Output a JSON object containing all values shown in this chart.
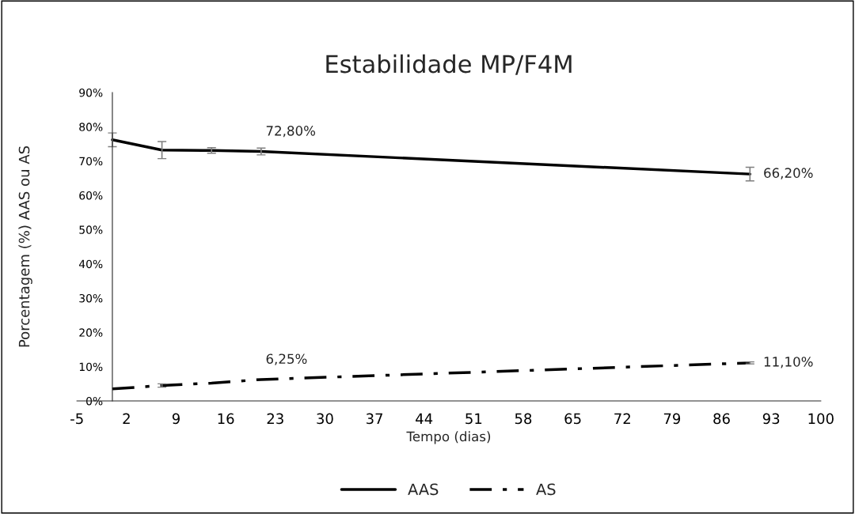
{
  "chart_data": {
    "type": "line",
    "title": "Estabilidade MP/F4M",
    "xlabel": "Tempo (dias)",
    "ylabel": "Porcentagem (%) AAS ou AS",
    "x": [
      0,
      7,
      14,
      21,
      90
    ],
    "series": [
      {
        "name": "AAS",
        "color": "#000000",
        "line_style": "solid",
        "values": [
          76.2,
          73.2,
          73.1,
          72.8,
          66.2
        ],
        "errors": [
          2,
          2.5,
          0.8,
          1,
          2
        ],
        "value_labels": [
          null,
          null,
          null,
          "72,80%",
          "66,20%"
        ]
      },
      {
        "name": "AS",
        "color": "#000000",
        "line_style": "dashdot",
        "values": [
          3.5,
          4.5,
          5.2,
          6.25,
          11.1
        ],
        "errors": [
          null,
          0.5,
          null,
          null,
          0.3
        ],
        "value_labels": [
          null,
          null,
          null,
          "6,25%",
          "11,10%"
        ]
      }
    ],
    "xlim": [
      -5,
      100
    ],
    "xticks": [
      -5,
      2,
      9,
      16,
      23,
      30,
      37,
      44,
      51,
      58,
      65,
      72,
      79,
      86,
      93,
      100
    ],
    "ylim": [
      0,
      90
    ],
    "yticks": [
      {
        "value": 0,
        "label": "0%"
      },
      {
        "value": 10,
        "label": "10%"
      },
      {
        "value": 20,
        "label": "20%"
      },
      {
        "value": 30,
        "label": "30%"
      },
      {
        "value": 40,
        "label": "40%"
      },
      {
        "value": 50,
        "label": "50%"
      },
      {
        "value": 60,
        "label": "60%"
      },
      {
        "value": 70,
        "label": "70%"
      },
      {
        "value": 80,
        "label": "80%"
      },
      {
        "value": 90,
        "label": "90%"
      }
    ],
    "grid": false,
    "legend": "bottom",
    "marker": "none"
  }
}
